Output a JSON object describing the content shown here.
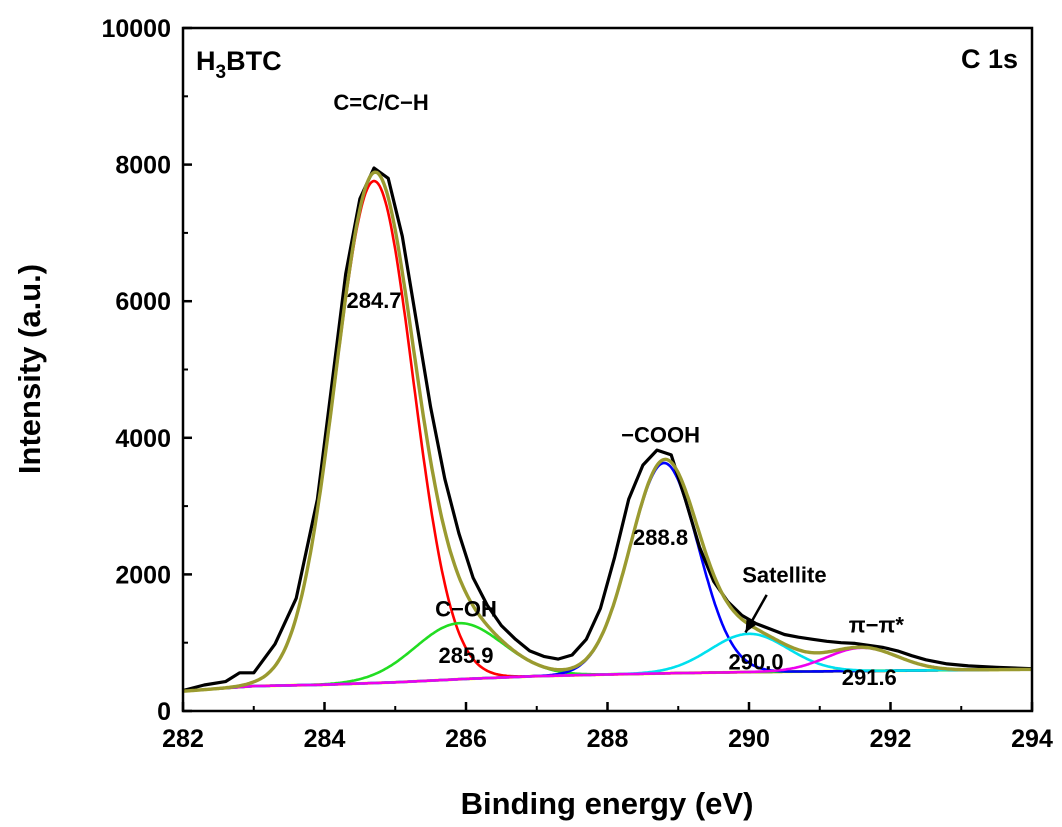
{
  "chart_data": {
    "type": "line",
    "title": "",
    "xlabel": "Binding energy (eV)",
    "ylabel": "Intensity (a.u.)",
    "xlim": [
      282,
      294
    ],
    "ylim": [
      0,
      10000
    ],
    "xticks": [
      282,
      284,
      286,
      288,
      290,
      292,
      294
    ],
    "yticks": [
      0,
      2000,
      4000,
      6000,
      8000,
      10000
    ],
    "xtick_labels": [
      "282",
      "284",
      "286",
      "288",
      "290",
      "292",
      "294"
    ],
    "ytick_labels": [
      "0",
      "2000",
      "4000",
      "6000",
      "8000",
      "10000"
    ],
    "grid": false,
    "sample_label": {
      "main": "H",
      "sub": "3",
      "rest": "BTC"
    },
    "region_label": "C 1s",
    "baseline": {
      "color": "#ffff00",
      "x": [
        282,
        283,
        284,
        285,
        286,
        287,
        288,
        289,
        290,
        291,
        292,
        293,
        294
      ],
      "y": [
        290,
        365,
        385,
        420,
        470,
        510,
        535,
        555,
        570,
        580,
        590,
        600,
        610
      ]
    },
    "components": [
      {
        "color": "#ff0000",
        "center": 284.7,
        "amplitude": 7350,
        "sigma": 0.55
      },
      {
        "color": "#22dd22",
        "center": 285.9,
        "amplitude": 820,
        "sigma": 0.62
      },
      {
        "color": "#0000ff",
        "center": 288.8,
        "amplitude": 3080,
        "sigma": 0.48
      },
      {
        "color": "#00e0ee",
        "center": 290.0,
        "amplitude": 560,
        "sigma": 0.55
      },
      {
        "color": "#ee00ee",
        "center": 291.6,
        "amplitude": 340,
        "sigma": 0.5
      }
    ],
    "envelope_color": "#9a9a30",
    "raw_color": "#000000",
    "raw_data": {
      "x": [
        282.0,
        282.3,
        282.6,
        282.8,
        283.0,
        283.3,
        283.6,
        283.9,
        284.1,
        284.3,
        284.5,
        284.7,
        284.9,
        285.1,
        285.3,
        285.5,
        285.7,
        285.9,
        286.1,
        286.3,
        286.5,
        286.7,
        286.9,
        287.1,
        287.3,
        287.5,
        287.7,
        287.9,
        288.1,
        288.3,
        288.5,
        288.7,
        288.9,
        289.1,
        289.3,
        289.5,
        289.7,
        289.9,
        290.1,
        290.3,
        290.5,
        290.7,
        290.9,
        291.1,
        291.3,
        291.5,
        291.7,
        291.9,
        292.1,
        292.3,
        292.5,
        292.8,
        293.1,
        293.5,
        294.0
      ],
      "y": [
        300,
        380,
        430,
        560,
        560,
        980,
        1650,
        3100,
        4750,
        6400,
        7500,
        7950,
        7800,
        6950,
        5700,
        4450,
        3400,
        2600,
        1950,
        1550,
        1250,
        1050,
        880,
        800,
        760,
        820,
        1050,
        1500,
        2250,
        3100,
        3600,
        3820,
        3750,
        3100,
        2400,
        1900,
        1600,
        1400,
        1280,
        1200,
        1120,
        1080,
        1050,
        1020,
        1000,
        990,
        960,
        930,
        880,
        810,
        750,
        690,
        660,
        640,
        620
      ]
    },
    "annotations": [
      {
        "text": "C=C/C−H",
        "x": 284.8,
        "y": 8800
      },
      {
        "text": "284.7",
        "x": 284.7,
        "y": 5900
      },
      {
        "text": "C−OH",
        "x": 286.0,
        "y": 1380
      },
      {
        "text": "285.9",
        "x": 286.0,
        "y": 700
      },
      {
        "text": "−COOH",
        "x": 288.75,
        "y": 3930
      },
      {
        "text": "288.8",
        "x": 288.75,
        "y": 2430
      },
      {
        "text": "Satellite",
        "x": 290.5,
        "y": 1880
      },
      {
        "text": "290.0",
        "x": 290.1,
        "y": 610
      },
      {
        "text": "π−π*",
        "x": 291.8,
        "y": 1150
      },
      {
        "text": "291.6",
        "x": 291.7,
        "y": 380
      }
    ],
    "satellite_arrow": {
      "from": [
        290.25,
        1700
      ],
      "to": [
        289.95,
        1150
      ]
    }
  }
}
